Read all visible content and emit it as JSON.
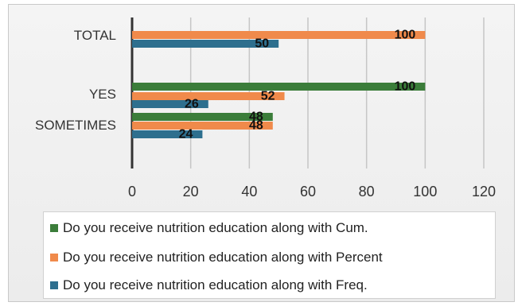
{
  "chart_data": {
    "type": "bar",
    "orientation": "horizontal",
    "categories": [
      "TOTAL",
      "YES",
      "SOMETIMES"
    ],
    "series": [
      {
        "name": "Do you receive nutrition education along with Cum.",
        "color": "#3b7d3a",
        "values": [
          null,
          100,
          48
        ]
      },
      {
        "name": "Do you receive nutrition education along with Percent",
        "color": "#f08a4b",
        "values": [
          100,
          52,
          48
        ]
      },
      {
        "name": "Do you receive nutrition education along with Freq.",
        "color": "#2e6f8e",
        "values": [
          50,
          26,
          24
        ]
      }
    ],
    "xlim": [
      0,
      120
    ],
    "xticks": [
      "0",
      "20",
      "40",
      "60",
      "80",
      "100",
      "120"
    ],
    "grid": true,
    "legend_position": "bottom"
  }
}
